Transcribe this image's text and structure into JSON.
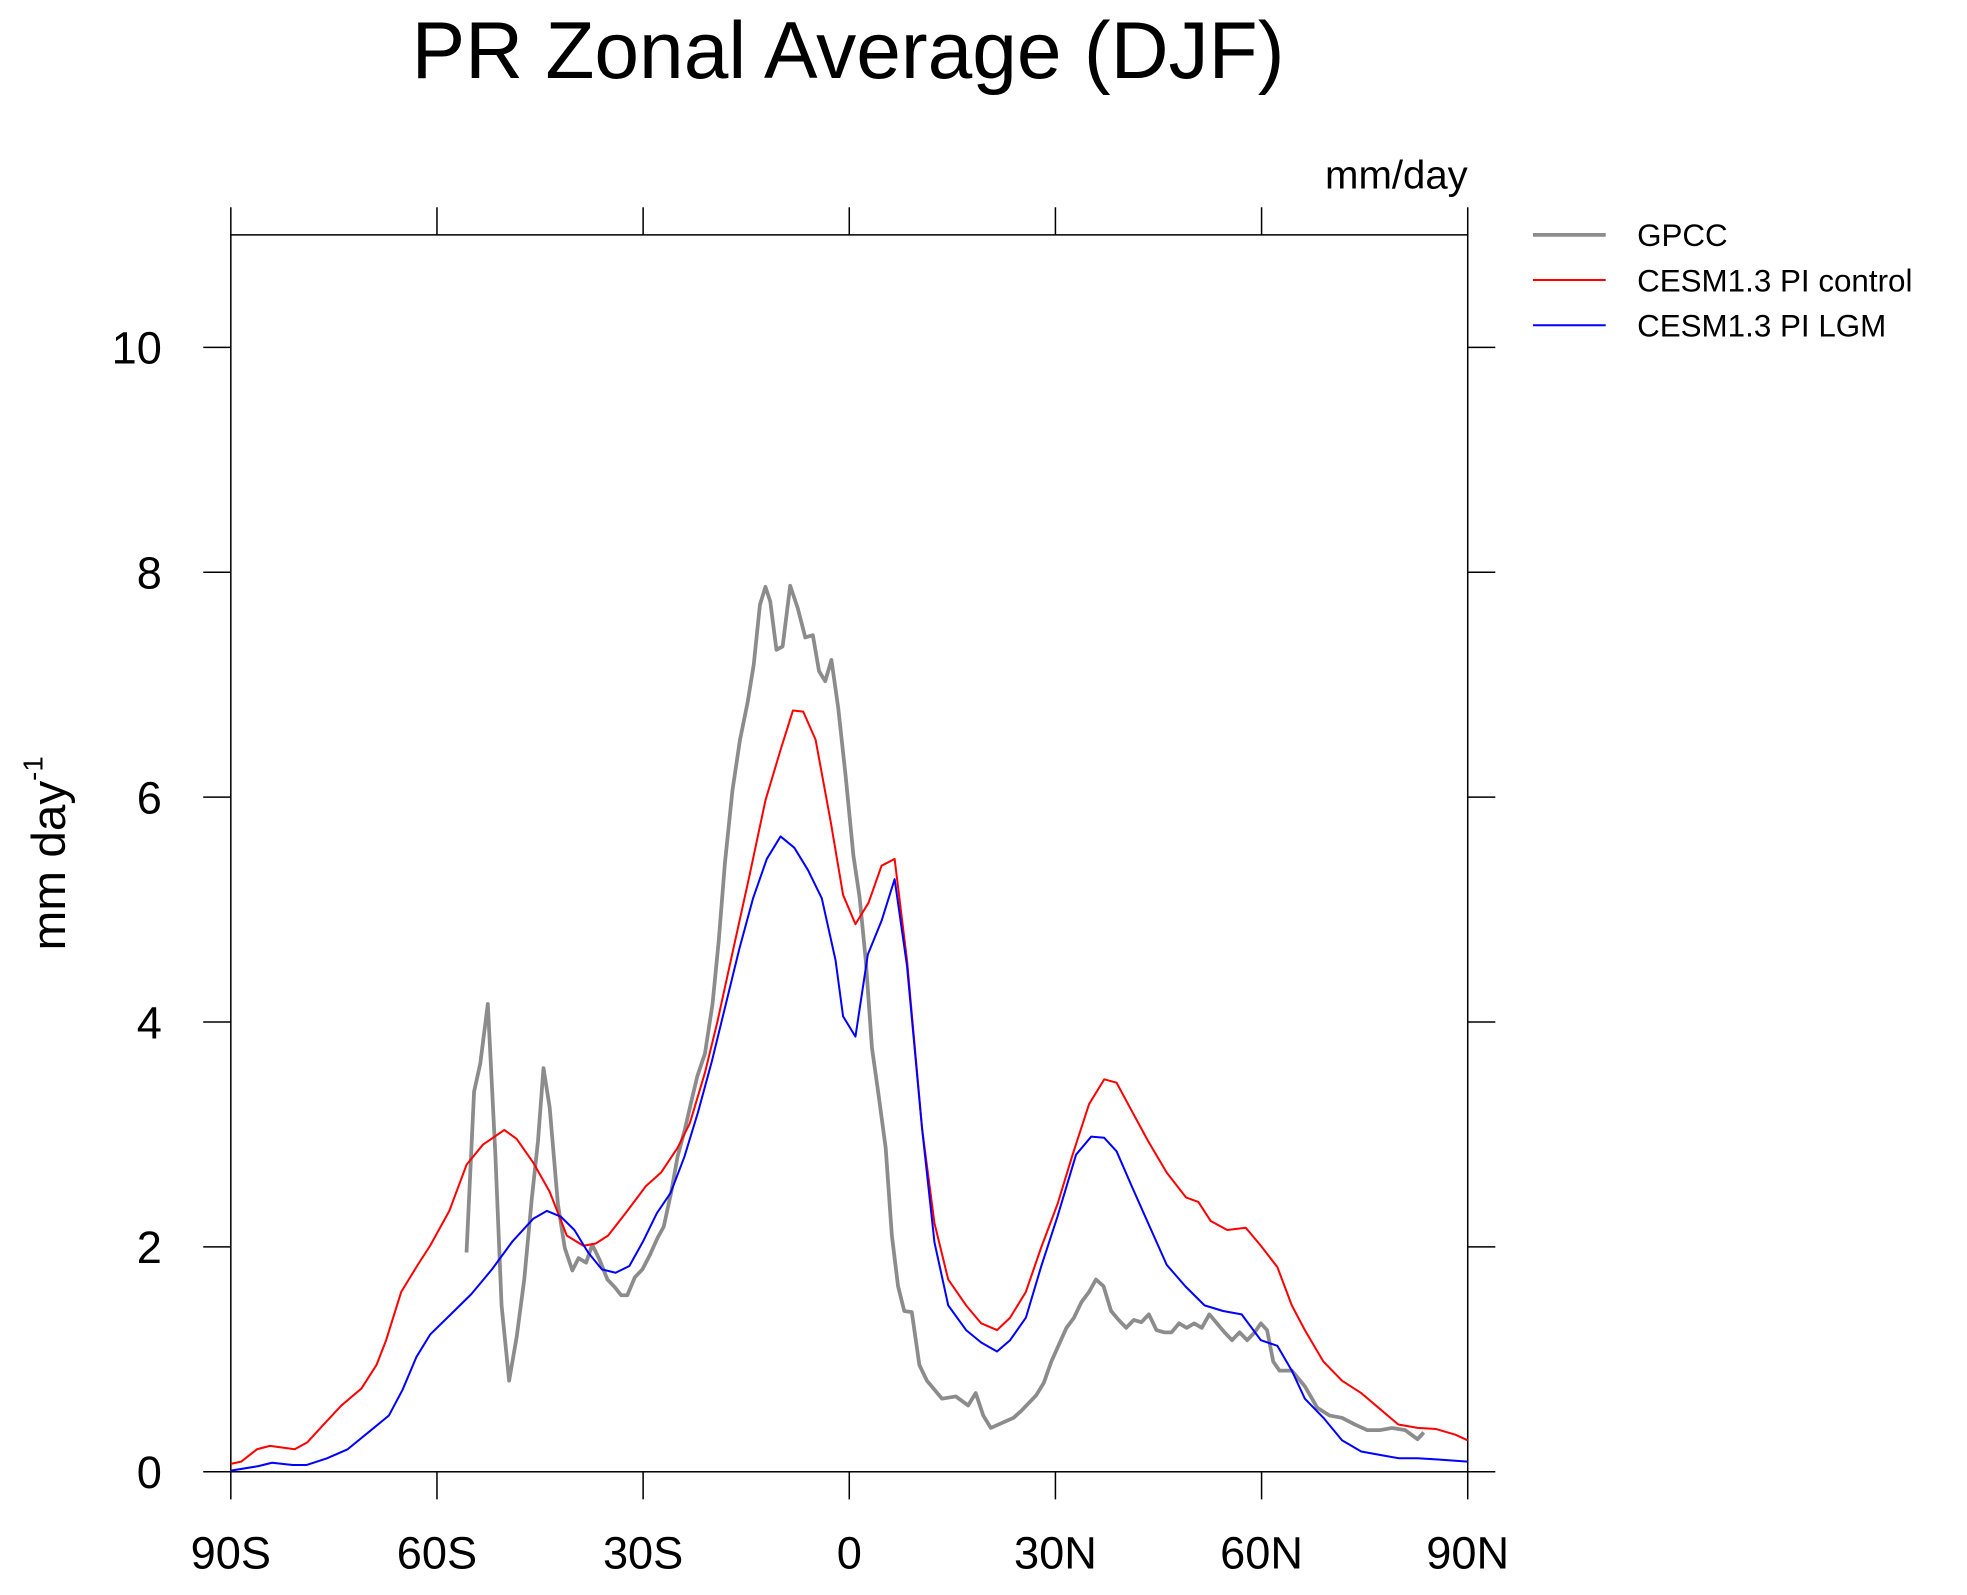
{
  "chart_data": {
    "type": "line",
    "title": "PR Zonal Average (DJF)",
    "units_label": "mm/day",
    "ylabel": "mm day",
    "ylabel_superscript": "-1",
    "xlim": [
      -90,
      90
    ],
    "ylim": [
      0,
      11
    ],
    "xticks": [
      {
        "value": -90,
        "label": "90S"
      },
      {
        "value": -60,
        "label": "60S"
      },
      {
        "value": -30,
        "label": "30S"
      },
      0,
      {
        "value": 30,
        "label": "30N"
      },
      {
        "value": 60,
        "label": "60N"
      },
      {
        "value": 90,
        "label": "90N"
      }
    ],
    "yticks": [
      0,
      2,
      4,
      6,
      8,
      10
    ],
    "series": [
      {
        "name": "GPCC",
        "color": "#8c8c8c",
        "x": [
          -55.7,
          -54.6,
          -53.7,
          -52.6,
          -51.5,
          -50.6,
          -49.5,
          -48.4,
          -47.3,
          -46.2,
          -45.3,
          -44.5,
          -43.6,
          -42.4,
          -41.4,
          -40.3,
          -39.4,
          -38.3,
          -37.4,
          -36.3,
          -35.2,
          -34.1,
          -33.2,
          -32.3,
          -31.2,
          -30.1,
          -29,
          -27.9,
          -27,
          -25.9,
          -25,
          -23.9,
          -23,
          -22.1,
          -21,
          -19.9,
          -19,
          -18.1,
          -17,
          -15.9,
          -14.8,
          -13.9,
          -13,
          -12.2,
          -11.5,
          -10.6,
          -9.7,
          -8.6,
          -7.5,
          -6.4,
          -5.3,
          -4.4,
          -3.5,
          -2.6,
          -1.6,
          -0.5,
          0.6,
          1.5,
          2.4,
          3.3,
          4.2,
          5.3,
          6.2,
          7.1,
          8,
          9.1,
          10.2,
          11.3,
          12.4,
          13.5,
          15.5,
          17.3,
          18.4,
          19.5,
          20.6,
          21.7,
          22.8,
          23.9,
          25,
          26.1,
          27.2,
          28.3,
          29.4,
          30.5,
          31.6,
          32.7,
          33.8,
          34.9,
          35.9,
          37,
          38.1,
          39.2,
          40.3,
          41.4,
          42.5,
          43.6,
          44.7,
          45.8,
          46.9,
          48,
          49.1,
          50.2,
          51.3,
          52.4,
          53.5,
          54.6,
          55.7,
          56.8,
          57.9,
          59,
          59.9,
          60.8,
          61.7,
          62.6,
          64.4,
          66.3,
          68.1,
          69.9,
          71.7,
          73.6,
          75.4,
          77.2,
          79,
          80.9,
          81.8,
          82.7,
          83.6
        ],
        "values": [
          1.95,
          3.38,
          3.63,
          4.16,
          2.82,
          1.48,
          0.81,
          1.2,
          1.71,
          2.43,
          2.94,
          3.59,
          3.24,
          2.38,
          1.99,
          1.79,
          1.9,
          1.86,
          2.02,
          1.88,
          1.71,
          1.64,
          1.57,
          1.57,
          1.73,
          1.8,
          1.93,
          2.08,
          2.18,
          2.49,
          2.8,
          3.05,
          3.29,
          3.52,
          3.72,
          4.16,
          4.72,
          5.41,
          6.06,
          6.51,
          6.84,
          7.18,
          7.71,
          7.87,
          7.74,
          7.31,
          7.34,
          7.88,
          7.68,
          7.42,
          7.44,
          7.12,
          7.03,
          7.22,
          6.79,
          6.17,
          5.48,
          5.11,
          4.55,
          3.77,
          3.38,
          2.88,
          2.1,
          1.65,
          1.43,
          1.42,
          0.95,
          0.81,
          0.73,
          0.65,
          0.67,
          0.59,
          0.7,
          0.5,
          0.39,
          0.42,
          0.45,
          0.48,
          0.54,
          0.61,
          0.68,
          0.79,
          0.98,
          1.13,
          1.28,
          1.37,
          1.51,
          1.6,
          1.71,
          1.65,
          1.43,
          1.35,
          1.28,
          1.35,
          1.33,
          1.4,
          1.26,
          1.24,
          1.24,
          1.32,
          1.28,
          1.32,
          1.28,
          1.4,
          1.32,
          1.24,
          1.17,
          1.24,
          1.17,
          1.24,
          1.32,
          1.26,
          0.98,
          0.9,
          0.9,
          0.76,
          0.57,
          0.5,
          0.48,
          0.42,
          0.37,
          0.37,
          0.39,
          0.37,
          0.33,
          0.29,
          0.35
        ]
      },
      {
        "name": "CESM1.3 PI control",
        "color": "#ff0000",
        "x": [
          -90,
          -88.5,
          -86.2,
          -84.3,
          -80.7,
          -78.9,
          -76.5,
          -73.9,
          -71,
          -68.8,
          -67.4,
          -65.2,
          -62.8,
          -61,
          -58.2,
          -55.7,
          -53.3,
          -50.9,
          -50.2,
          -48.4,
          -46,
          -43.6,
          -41.1,
          -38.7,
          -36.9,
          -35.1,
          -32.3,
          -29.6,
          -27.4,
          -25,
          -23.2,
          -21,
          -19.2,
          -16.8,
          -14.6,
          -12.2,
          -10,
          -8.2,
          -6.7,
          -4.9,
          -2.7,
          -0.9,
          0.9,
          2.8,
          4.7,
          6.6,
          8.4,
          10.6,
          12.4,
          14.4,
          17,
          19.2,
          21.5,
          23.4,
          25.7,
          27.9,
          30.3,
          32.5,
          34.9,
          37.1,
          38.9,
          41.1,
          43.5,
          46.2,
          49,
          50.8,
          52.6,
          55,
          57.7,
          59.9,
          62.3,
          64.4,
          66.3,
          69,
          71.7,
          74.5,
          77.2,
          79.9,
          82.7,
          85.4,
          88.2,
          90
        ],
        "values": [
          0.07,
          0.09,
          0.2,
          0.23,
          0.2,
          0.26,
          0.42,
          0.59,
          0.74,
          0.95,
          1.17,
          1.6,
          1.84,
          2.01,
          2.32,
          2.73,
          2.91,
          3.01,
          3.04,
          2.96,
          2.75,
          2.49,
          2.1,
          2.01,
          2.03,
          2.1,
          2.32,
          2.54,
          2.66,
          2.88,
          3.1,
          3.55,
          4.0,
          4.67,
          5.28,
          5.97,
          6.42,
          6.77,
          6.76,
          6.51,
          5.78,
          5.13,
          4.87,
          5.06,
          5.39,
          5.45,
          4.55,
          3.05,
          2.21,
          1.71,
          1.48,
          1.32,
          1.26,
          1.37,
          1.6,
          1.99,
          2.38,
          2.82,
          3.27,
          3.49,
          3.46,
          3.21,
          2.94,
          2.66,
          2.44,
          2.4,
          2.23,
          2.15,
          2.17,
          2.01,
          1.82,
          1.48,
          1.26,
          0.98,
          0.81,
          0.7,
          0.56,
          0.42,
          0.39,
          0.38,
          0.33,
          0.28
        ]
      },
      {
        "name": "CESM1.3 PI LGM",
        "color": "#0000ff",
        "x": [
          -90,
          -86,
          -84,
          -81,
          -79,
          -76,
          -73,
          -70,
          -67,
          -65,
          -63,
          -61,
          -58,
          -55,
          -52,
          -49,
          -46,
          -44,
          -42,
          -40,
          -38,
          -36,
          -34,
          -32,
          -30,
          -28,
          -26,
          -24,
          -22,
          -20,
          -18,
          -16,
          -14,
          -12,
          -10,
          -8,
          -6,
          -4,
          -2,
          -0.9,
          0.9,
          2.7,
          4.7,
          6.6,
          8.4,
          10.6,
          12.4,
          14.4,
          17,
          19.2,
          21.5,
          23.4,
          25.7,
          27.9,
          30.3,
          33,
          35.2,
          37.1,
          38.9,
          41.1,
          43.5,
          46.2,
          48.9,
          51.7,
          54.4,
          57.1,
          59.9,
          62.3,
          64.4,
          66.3,
          69,
          71.7,
          74.5,
          77.2,
          80,
          82.7,
          85.4,
          90
        ],
        "values": [
          0.01,
          0.05,
          0.08,
          0.06,
          0.06,
          0.12,
          0.2,
          0.35,
          0.5,
          0.73,
          1.02,
          1.22,
          1.4,
          1.58,
          1.8,
          2.05,
          2.25,
          2.32,
          2.27,
          2.15,
          1.95,
          1.8,
          1.77,
          1.83,
          2.05,
          2.3,
          2.48,
          2.8,
          3.2,
          3.65,
          4.15,
          4.65,
          5.1,
          5.45,
          5.65,
          5.55,
          5.35,
          5.1,
          4.55,
          4.05,
          3.87,
          4.6,
          4.9,
          5.27,
          4.5,
          3.05,
          2.04,
          1.48,
          1.26,
          1.15,
          1.07,
          1.17,
          1.37,
          1.82,
          2.27,
          2.82,
          2.98,
          2.97,
          2.85,
          2.54,
          2.21,
          1.84,
          1.65,
          1.48,
          1.43,
          1.4,
          1.17,
          1.12,
          0.9,
          0.65,
          0.48,
          0.28,
          0.18,
          0.15,
          0.12,
          0.12,
          0.11,
          0.09
        ]
      }
    ]
  }
}
